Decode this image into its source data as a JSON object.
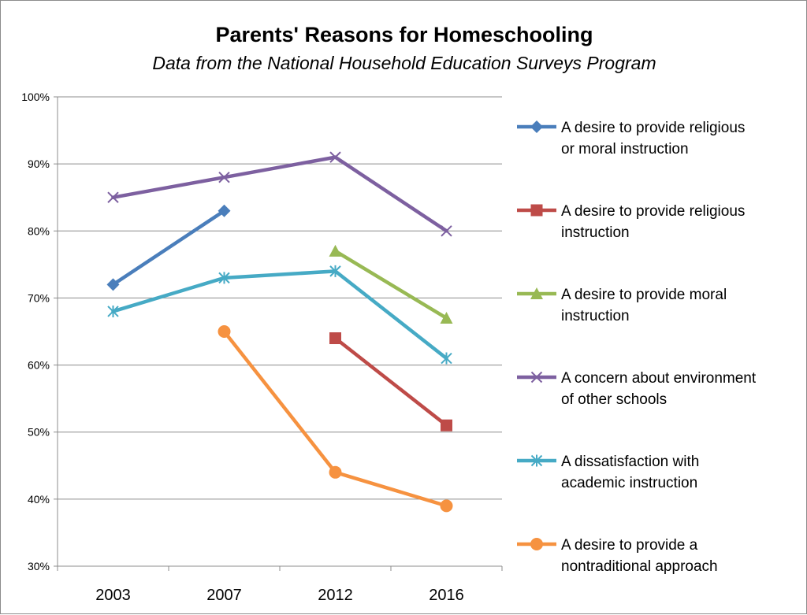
{
  "chart_data": {
    "type": "line",
    "title": "Parents' Reasons for Homeschooling",
    "subtitle": "Data from the National Household Education Surveys Program",
    "categories": [
      "2003",
      "2007",
      "2012",
      "2016"
    ],
    "ylim": [
      30,
      100
    ],
    "yticks": [
      {
        "value": 30,
        "label": "30%"
      },
      {
        "value": 40,
        "label": "40%"
      },
      {
        "value": 50,
        "label": "50%"
      },
      {
        "value": 60,
        "label": "60%"
      },
      {
        "value": 70,
        "label": "70%"
      },
      {
        "value": 80,
        "label": "80%"
      },
      {
        "value": 90,
        "label": "90%"
      },
      {
        "value": 100,
        "label": "100%"
      }
    ],
    "grid": true,
    "legend_position": "right",
    "series": [
      {
        "name": "A desire to provide religious or moral instruction",
        "legend_lines": [
          "A desire to provide religious",
          "or moral instruction"
        ],
        "values": [
          72,
          83,
          null,
          null
        ],
        "color": "#4a7ebb",
        "marker": "diamond"
      },
      {
        "name": "A desire to provide religious instruction",
        "legend_lines": [
          "A desire to provide religious",
          "instruction"
        ],
        "values": [
          null,
          null,
          64,
          51
        ],
        "color": "#be4b48",
        "marker": "square"
      },
      {
        "name": "A desire to provide moral instruction",
        "legend_lines": [
          "A desire to provide moral",
          "instruction"
        ],
        "values": [
          null,
          null,
          77,
          67
        ],
        "color": "#98b954",
        "marker": "triangle"
      },
      {
        "name": "A concern about environment of other schools",
        "legend_lines": [
          "A concern about environment",
          "of other schools"
        ],
        "values": [
          85,
          88,
          91,
          80
        ],
        "color": "#7d60a0",
        "marker": "x"
      },
      {
        "name": "A dissatisfaction with academic instruction",
        "legend_lines": [
          "A dissatisfaction with",
          "academic instruction"
        ],
        "values": [
          68,
          73,
          74,
          61
        ],
        "color": "#46aac5",
        "marker": "star"
      },
      {
        "name": "A desire to provide a nontraditional approach",
        "legend_lines": [
          "A desire to provide a",
          "nontraditional approach"
        ],
        "values": [
          null,
          65,
          44,
          39
        ],
        "color": "#f69240",
        "marker": "circle"
      }
    ]
  }
}
